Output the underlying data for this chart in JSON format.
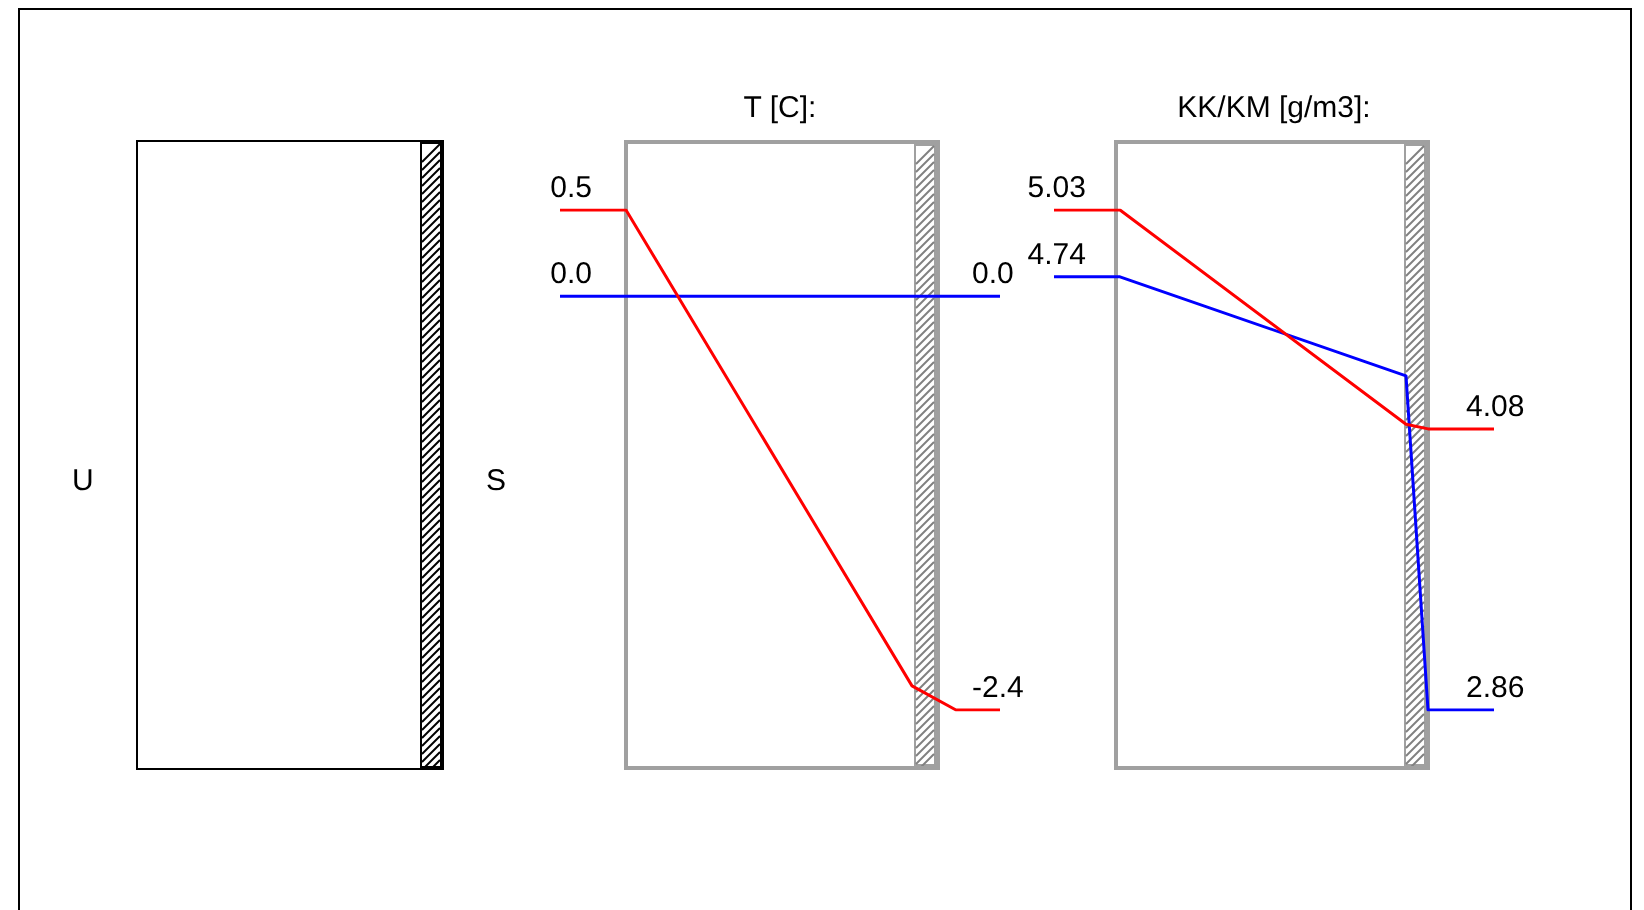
{
  "chart_data": [
    {
      "type": "other",
      "annotations": [
        "U",
        "S"
      ]
    },
    {
      "type": "line",
      "title": "T [C]:",
      "categories": [
        null,
        null,
        null,
        null,
        null,
        null,
        null,
        null,
        null,
        null,
        null,
        null,
        null,
        null,
        null,
        null,
        null,
        null,
        null,
        null,
        null
      ],
      "tick_labels": false,
      "legend": false,
      "series": [
        {
          "color": "#ff0000",
          "values": [
            0.5,
            null,
            null,
            0.5,
            null,
            null,
            null,
            null,
            null,
            null,
            null,
            null,
            null,
            null,
            null,
            null,
            -2.26,
            null,
            -2.4,
            null,
            -2.4
          ],
          "value_labels": [
            "0.5",
            null,
            null,
            null,
            null,
            null,
            null,
            null,
            null,
            null,
            null,
            null,
            null,
            null,
            null,
            null,
            null,
            null,
            null,
            null,
            "-2.4"
          ]
        },
        {
          "color": "#0000ff",
          "values": [
            0,
            null,
            null,
            null,
            null,
            null,
            null,
            null,
            null,
            null,
            null,
            null,
            null,
            null,
            null,
            null,
            null,
            null,
            null,
            null,
            0
          ],
          "value_labels": [
            "0.0",
            null,
            null,
            null,
            null,
            null,
            null,
            null,
            null,
            null,
            null,
            null,
            null,
            null,
            null,
            null,
            null,
            null,
            null,
            null,
            "0.0"
          ]
        }
      ]
    },
    {
      "type": "line",
      "title": "KK/KM [g/m3]:",
      "categories": [
        null,
        null,
        null,
        null,
        null,
        null,
        null,
        null,
        null,
        null,
        null,
        null,
        null,
        null,
        null,
        null,
        null,
        null,
        null,
        null,
        null
      ],
      "tick_labels": false,
      "legend": false,
      "series": [
        {
          "color": "#ff0000",
          "values": [
            5.03,
            null,
            null,
            5.03,
            null,
            null,
            null,
            null,
            null,
            null,
            null,
            null,
            null,
            null,
            null,
            null,
            4.1,
            4.08,
            null,
            null,
            4.08
          ],
          "value_labels": [
            "5.03",
            null,
            null,
            null,
            null,
            null,
            null,
            null,
            null,
            null,
            null,
            null,
            null,
            null,
            null,
            null,
            null,
            null,
            null,
            null,
            "4.08"
          ]
        },
        {
          "color": "#0000ff",
          "values": [
            4.74,
            null,
            null,
            4.74,
            null,
            null,
            null,
            null,
            null,
            null,
            null,
            null,
            null,
            null,
            null,
            null,
            4.31,
            2.86,
            null,
            null,
            2.86
          ],
          "value_labels": [
            "4.74",
            null,
            null,
            null,
            null,
            null,
            null,
            null,
            null,
            null,
            null,
            null,
            null,
            null,
            null,
            null,
            null,
            null,
            null,
            null,
            "2.86"
          ]
        }
      ]
    }
  ]
}
